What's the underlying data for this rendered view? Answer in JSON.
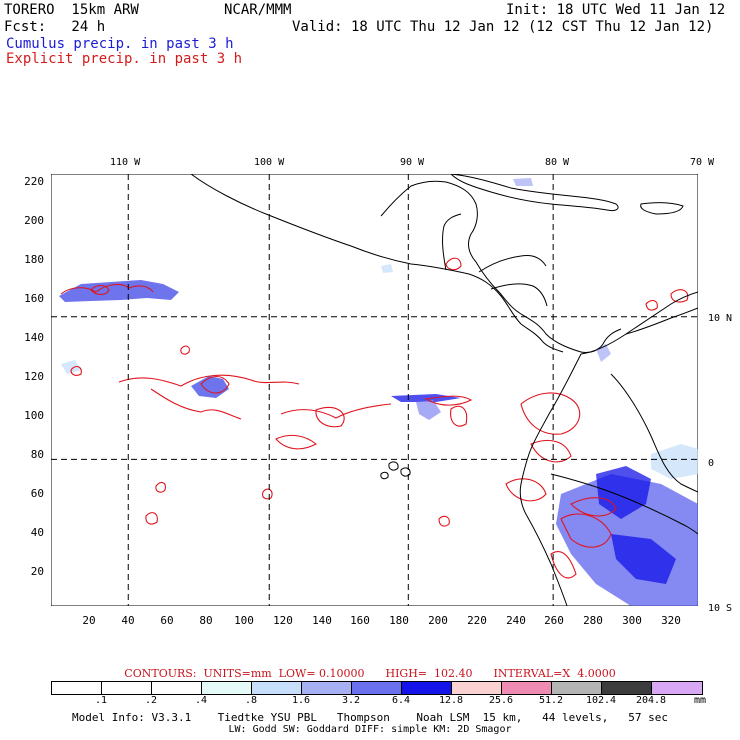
{
  "header": {
    "model": "TORERO  15km ARW",
    "org": "NCAR/MMM",
    "init": "Init: 18 UTC Wed 11 Jan 12",
    "fcst": "Fcst:   24 h",
    "valid": "Valid: 18 UTC Thu 12 Jan 12 (12 CST Thu 12 Jan 12)",
    "cumulus": "Cumulus precip. in past 3 h",
    "explicit": "Explicit precip. in past 3 h"
  },
  "map": {
    "lon_labels": [
      "110 W",
      "100 W",
      "90 W",
      "80 W",
      "70 W"
    ],
    "lat_labels": [
      "10 N",
      "0",
      "10 S"
    ],
    "y_ticks": [
      "220",
      "200",
      "180",
      "160",
      "140",
      "120",
      "100",
      "80",
      "60",
      "40",
      "20"
    ],
    "x_ticks": [
      "20",
      "40",
      "60",
      "80",
      "100",
      "120",
      "140",
      "160",
      "180",
      "200",
      "220",
      "240",
      "260",
      "280",
      "300",
      "320"
    ],
    "grid_x_values": [
      40,
      113,
      185,
      260
    ],
    "grid_y_values": [
      150,
      76
    ],
    "x_range": [
      0,
      335
    ],
    "y_range": [
      0,
      224
    ],
    "colors": {
      "cumulus": "#1c1cd6",
      "explicit": "#e0141e",
      "coast": "#000000"
    }
  },
  "contours": "CONTOURS:  UNITS=mm  LOW= 0.10000      HIGH=  102.40      INTERVAL=X  4.0000",
  "colorbar": {
    "ticks": [
      ".1",
      ".2",
      ".4",
      ".8",
      "1.6",
      "3.2",
      "6.4",
      "12.8",
      "25.6",
      "51.2",
      "102.4",
      "204.8"
    ],
    "unit": "mm",
    "colors": [
      "#ffffff",
      "#ffffff",
      "#ffffff",
      "#e4fbf7",
      "#c7dffa",
      "#a8b0f5",
      "#6b70ee",
      "#1414e8",
      "#fad2d2",
      "#f08cb4",
      "#b4b4b4",
      "#3c3c3c",
      "#d8a8f5"
    ]
  },
  "footer": {
    "line1": "Model Info: V3.3.1    Tiedtke YSU PBL   Thompson    Noah LSM  15 km,   44 levels,   57 sec",
    "line2": "LW: Godd SW: Goddard DIFF: simple KM: 2D Smagor"
  }
}
